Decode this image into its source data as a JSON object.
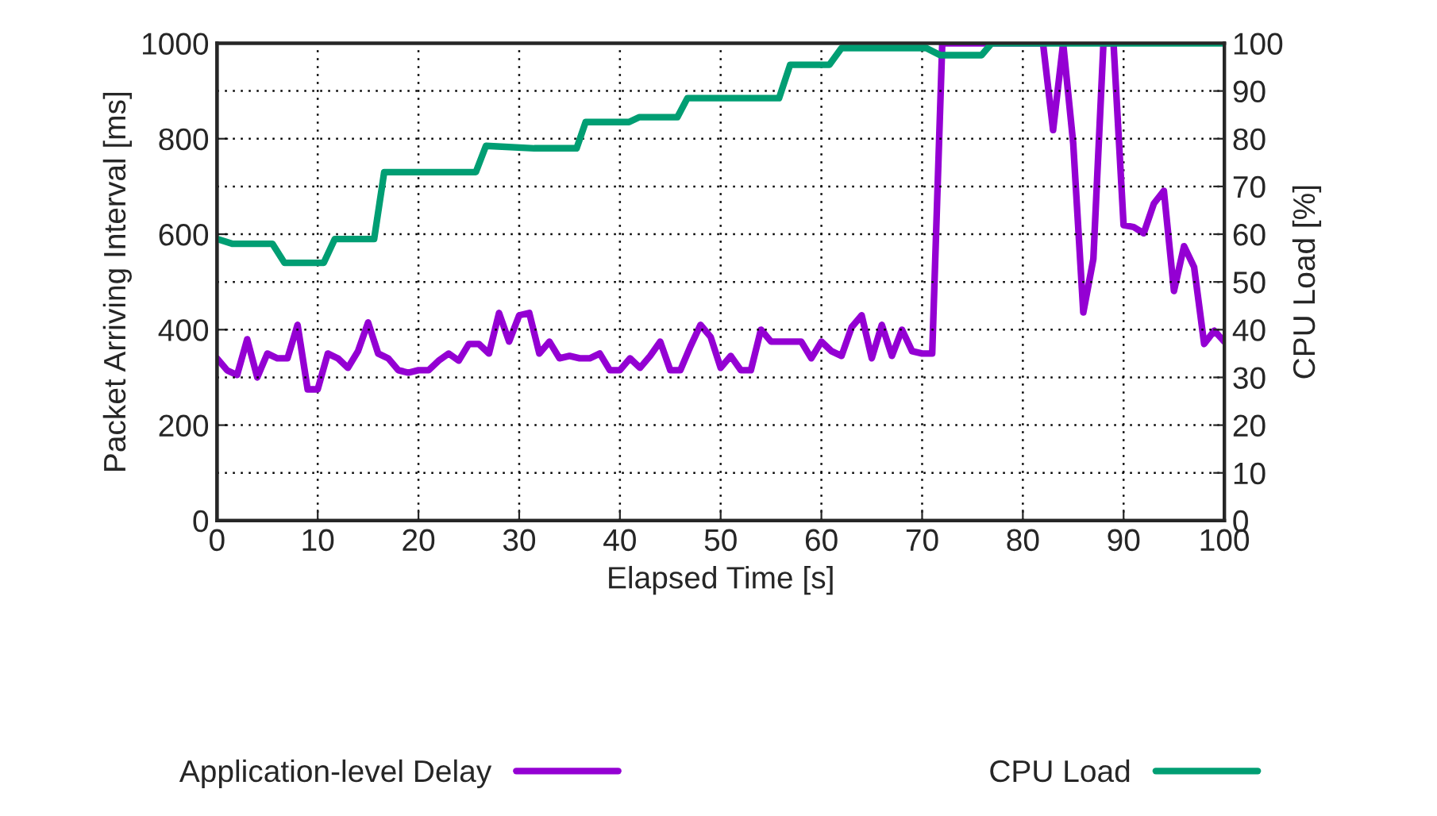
{
  "chart_data": {
    "type": "line",
    "xlabel": "Elapsed Time [s]",
    "ylabel": "Packet Arriving Interval [ms]",
    "y2label": "CPU Load [%]",
    "xlim": [
      0,
      100
    ],
    "xticks": [
      0,
      10,
      20,
      30,
      40,
      50,
      60,
      70,
      80,
      90,
      100
    ],
    "ylim": [
      0,
      1000
    ],
    "yticks": [
      0,
      200,
      400,
      600,
      800,
      1000
    ],
    "y2lim": [
      0,
      100
    ],
    "y2ticks": [
      0,
      10,
      20,
      30,
      40,
      50,
      60,
      70,
      80,
      90,
      100
    ],
    "grid": true,
    "legend": "bottom",
    "line_style": "solid",
    "marker": "none",
    "series": [
      {
        "name": "Application-level Delay",
        "color": "#9400d3",
        "x": [
          0,
          1,
          2,
          3,
          4,
          5,
          6,
          7,
          8,
          9,
          10,
          11,
          12,
          13,
          14,
          15,
          16,
          17,
          18,
          19,
          20,
          21,
          22,
          23,
          24,
          25,
          26,
          27,
          28,
          29,
          30,
          31,
          32,
          33,
          34,
          35,
          36,
          37,
          38,
          39,
          40,
          41,
          42,
          43,
          44,
          45,
          46,
          47,
          48,
          49,
          50,
          51,
          52,
          53,
          54,
          55,
          56,
          57,
          58,
          59,
          60,
          61,
          62,
          63,
          64,
          65,
          66,
          67,
          68,
          69,
          70,
          71,
          72,
          73,
          74,
          75,
          76,
          77,
          78,
          79,
          80,
          81,
          82,
          83,
          84,
          85,
          86,
          87,
          88,
          89,
          90,
          91,
          92,
          93,
          94,
          95,
          96,
          97,
          98,
          99,
          100
        ],
        "values": [
          340,
          315,
          305,
          380,
          300,
          350,
          340,
          340,
          410,
          275,
          275,
          350,
          340,
          320,
          355,
          415,
          350,
          340,
          315,
          310,
          315,
          315,
          335,
          350,
          335,
          370,
          370,
          350,
          435,
          375,
          430,
          435,
          350,
          375,
          340,
          345,
          340,
          340,
          350,
          315,
          315,
          340,
          320,
          345,
          375,
          315,
          315,
          365,
          410,
          385,
          320,
          345,
          315,
          315,
          400,
          375,
          375,
          375,
          375,
          340,
          375,
          355,
          345,
          405,
          430,
          340,
          410,
          345,
          400,
          355,
          350,
          350,
          1000,
          1000,
          1000,
          1000,
          1000,
          1000,
          1000,
          1000,
          1000,
          1000,
          1000,
          818,
          1000,
          790,
          436,
          548,
          1000,
          1000,
          619,
          615,
          602,
          664,
          691,
          481,
          575,
          531,
          370,
          398,
          375
        ]
      },
      {
        "name": "CPU Load",
        "color": "#009e73",
        "axis": "y2",
        "x": [
          0,
          1.5,
          5.5,
          6.7,
          10.6,
          11.7,
          15.6,
          16.6,
          21.5,
          25.7,
          26.7,
          31.5,
          35.7,
          36.6,
          40.9,
          41.9,
          45.7,
          46.7,
          55.8,
          56.9,
          60.8,
          62,
          70.4,
          71.8,
          75.9,
          76.9,
          100
        ],
        "values": [
          59,
          58,
          58,
          54,
          54,
          59,
          59,
          73,
          73,
          73,
          78.5,
          78,
          78,
          83.5,
          83.5,
          84.5,
          84.5,
          88.5,
          88.5,
          95.5,
          95.5,
          99,
          99,
          97.5,
          97.5,
          100,
          100
        ]
      }
    ]
  }
}
